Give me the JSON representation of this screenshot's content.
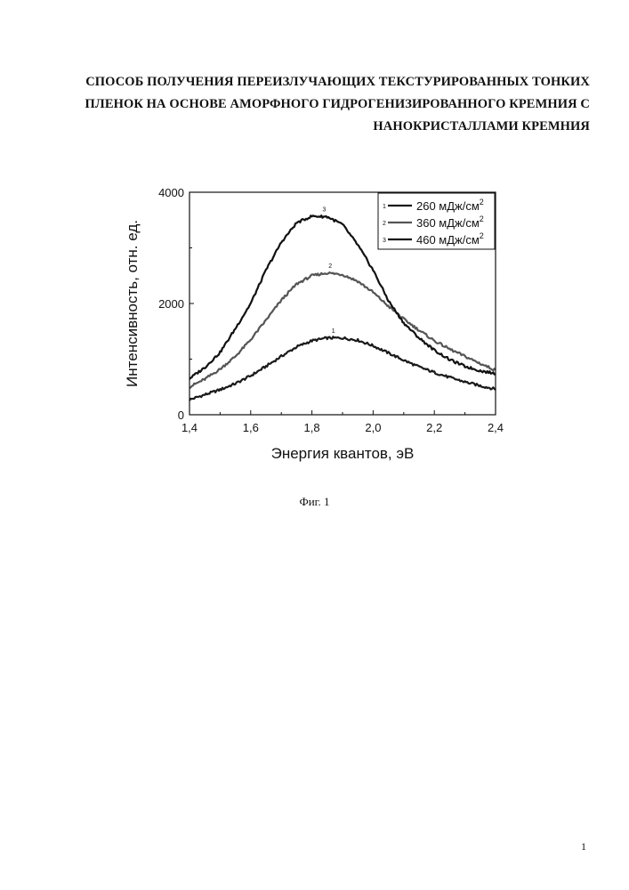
{
  "document": {
    "title_lines": [
      "СПОСОБ ПОЛУЧЕНИЯ ПЕРЕИЗЛУЧАЮЩИХ ТЕКСТУРИРОВАННЫХ ТОНКИХ",
      "ПЛЕНОК НА ОСНОВЕ АМОРФНОГО ГИДРОГЕНИЗИРОВАННОГО КРЕМНИЯ С",
      "НАНОКРИСТАЛЛАМИ КРЕМНИЯ"
    ],
    "figure_caption": "Фиг. 1",
    "page_number": "1"
  },
  "chart_data": {
    "type": "line",
    "xlabel": "Энергия квантов, эВ",
    "ylabel": "Интенсивность, отн. ед.",
    "xlim": [
      1.4,
      2.4
    ],
    "ylim": [
      0,
      4000
    ],
    "x_ticks": [
      "1,4",
      "1,6",
      "1,8",
      "2,0",
      "2,2",
      "2,4"
    ],
    "y_ticks": [
      "0",
      "2000",
      "4000"
    ],
    "grid": false,
    "legend_position": "top-right",
    "x": [
      1.4,
      1.45,
      1.5,
      1.55,
      1.6,
      1.65,
      1.7,
      1.75,
      1.8,
      1.85,
      1.9,
      1.95,
      2.0,
      2.05,
      2.1,
      2.15,
      2.2,
      2.25,
      2.3,
      2.35,
      2.4
    ],
    "series": [
      {
        "name": "260 мДж/см",
        "superscript": "2",
        "marker": "1",
        "color": "#1a1a1a",
        "peak_x": 1.87,
        "values": [
          270,
          360,
          450,
          560,
          700,
          870,
          1050,
          1220,
          1330,
          1380,
          1380,
          1340,
          1240,
          1110,
          980,
          860,
          760,
          670,
          590,
          520,
          460
        ]
      },
      {
        "name": "360 мДж/см",
        "superscript": "2",
        "marker": "2",
        "color": "#555555",
        "peak_x": 1.86,
        "values": [
          500,
          640,
          820,
          1050,
          1350,
          1700,
          2060,
          2350,
          2500,
          2550,
          2520,
          2400,
          2200,
          1950,
          1720,
          1520,
          1330,
          1180,
          1050,
          920,
          800
        ]
      },
      {
        "name": "460 мДж/см",
        "superscript": "2",
        "marker": "3",
        "color": "#111111",
        "peak_x": 1.84,
        "values": [
          650,
          850,
          1120,
          1550,
          2000,
          2600,
          3100,
          3450,
          3570,
          3560,
          3420,
          3050,
          2600,
          2050,
          1650,
          1380,
          1160,
          990,
          870,
          790,
          740
        ]
      }
    ]
  }
}
